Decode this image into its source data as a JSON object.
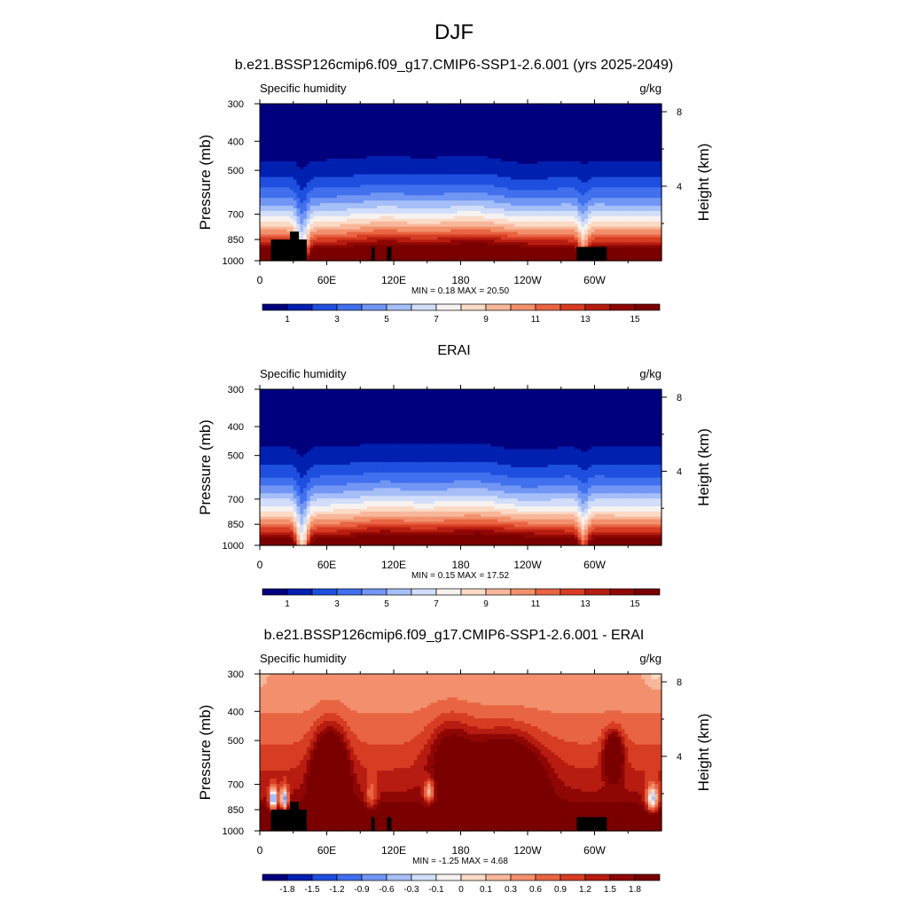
{
  "figure": {
    "title": "DJF"
  },
  "chart_data": [
    {
      "type": "heatmap",
      "title": "b.e21.BSSP126cmip6.f09_g17.CMIP6-SSP1-2.6.001 (yrs 2025-2049)",
      "subtitle_left": "Specific humidity",
      "subtitle_right": "g/kg",
      "ylabel": "Pressure (mb)",
      "ylabel_right": "Height (km)",
      "x_ticks": [
        "0",
        "60E",
        "120E",
        "180",
        "120W",
        "60W"
      ],
      "x_tick_lon": [
        0,
        60,
        120,
        180,
        240,
        300
      ],
      "xlim": [
        0,
        360
      ],
      "y_ticks": [
        "300",
        "400",
        "500",
        "700",
        "850",
        "1000"
      ],
      "y_tick_p": [
        300,
        400,
        500,
        700,
        850,
        1000
      ],
      "ylim": [
        1000,
        300
      ],
      "yscale": "log",
      "right_ticks": [
        "8",
        "4"
      ],
      "right_tick_km": [
        8,
        4
      ],
      "stats": "MIN =   0.18  MAX =  20.50",
      "min": 0.18,
      "max": 20.5,
      "colorbar": {
        "labels": [
          "1",
          "3",
          "5",
          "7",
          "9",
          "11",
          "13",
          "15"
        ],
        "colors": [
          "#00007f",
          "#0020b0",
          "#1f4fdf",
          "#4070ee",
          "#7196f4",
          "#a6bff8",
          "#d2def9",
          "#f6f2f0",
          "#fbdac6",
          "#f8b79a",
          "#f2906d",
          "#e96442",
          "#d63d22",
          "#b71c10",
          "#8f0705",
          "#7a0000"
        ]
      },
      "diff": false,
      "topography_masked": true
    },
    {
      "type": "heatmap",
      "title": "ERAI",
      "subtitle_left": "Specific humidity",
      "subtitle_right": "g/kg",
      "ylabel": "Pressure (mb)",
      "ylabel_right": "Height (km)",
      "x_ticks": [
        "0",
        "60E",
        "120E",
        "180",
        "120W",
        "60W"
      ],
      "x_tick_lon": [
        0,
        60,
        120,
        180,
        240,
        300
      ],
      "xlim": [
        0,
        360
      ],
      "y_ticks": [
        "300",
        "400",
        "500",
        "700",
        "850",
        "1000"
      ],
      "y_tick_p": [
        300,
        400,
        500,
        700,
        850,
        1000
      ],
      "ylim": [
        1000,
        300
      ],
      "yscale": "log",
      "right_ticks": [
        "8",
        "4"
      ],
      "right_tick_km": [
        8,
        4
      ],
      "stats": "MIN =   0.15  MAX =  17.52",
      "min": 0.15,
      "max": 17.52,
      "colorbar": {
        "labels": [
          "1",
          "3",
          "5",
          "7",
          "9",
          "11",
          "13",
          "15"
        ],
        "colors": [
          "#00007f",
          "#0020b0",
          "#1f4fdf",
          "#4070ee",
          "#7196f4",
          "#a6bff8",
          "#d2def9",
          "#f6f2f0",
          "#fbdac6",
          "#f8b79a",
          "#f2906d",
          "#e96442",
          "#d63d22",
          "#b71c10",
          "#8f0705",
          "#7a0000"
        ]
      },
      "diff": false,
      "topography_masked": false
    },
    {
      "type": "heatmap",
      "title": "b.e21.BSSP126cmip6.f09_g17.CMIP6-SSP1-2.6.001 - ERAI",
      "subtitle_left": "Specific humidity",
      "subtitle_right": "g/kg",
      "ylabel": "Pressure (mb)",
      "ylabel_right": "Height (km)",
      "x_ticks": [
        "0",
        "60E",
        "120E",
        "180",
        "120W",
        "60W"
      ],
      "x_tick_lon": [
        0,
        60,
        120,
        180,
        240,
        300
      ],
      "xlim": [
        0,
        360
      ],
      "y_ticks": [
        "300",
        "400",
        "500",
        "700",
        "850",
        "1000"
      ],
      "y_tick_p": [
        300,
        400,
        500,
        700,
        850,
        1000
      ],
      "ylim": [
        1000,
        300
      ],
      "yscale": "log",
      "right_ticks": [
        "8",
        "4"
      ],
      "right_tick_km": [
        8,
        4
      ],
      "stats": "MIN =  -1.25  MAX =   4.68",
      "min": -1.25,
      "max": 4.68,
      "colorbar": {
        "labels": [
          "-1.8",
          "-1.5",
          "-1.2",
          "-0.9",
          "-0.6",
          "-0.3",
          "-0.1",
          "0",
          "0.1",
          "0.3",
          "0.6",
          "0.9",
          "1.2",
          "1.5",
          "1.8"
        ],
        "colors": [
          "#00007f",
          "#0020b0",
          "#1f4fdf",
          "#4070ee",
          "#7196f4",
          "#a6bff8",
          "#d2def9",
          "#f6f2f0",
          "#fbdac6",
          "#f8b79a",
          "#f2906d",
          "#e96442",
          "#d63d22",
          "#b71c10",
          "#8f0705",
          "#7a0000"
        ]
      },
      "diff": true,
      "topography_masked": true
    }
  ]
}
